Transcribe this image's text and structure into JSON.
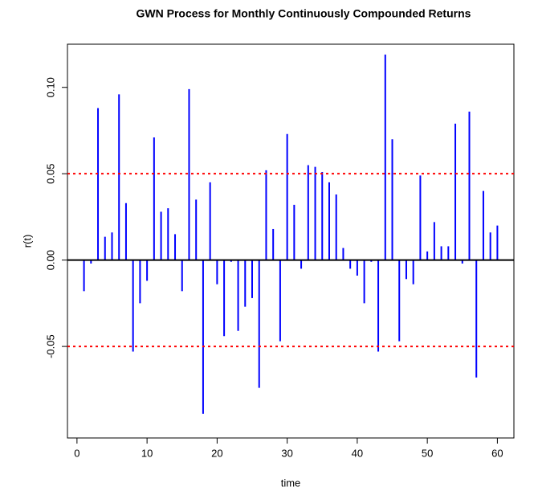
{
  "chart_data": {
    "type": "spike",
    "title": "GWN Process for Monthly Continuously Compounded Returns",
    "x_label": "time",
    "y_label": "r(t)",
    "x": [
      1,
      2,
      3,
      4,
      5,
      6,
      7,
      8,
      9,
      10,
      11,
      12,
      13,
      14,
      15,
      16,
      17,
      18,
      19,
      20,
      21,
      22,
      23,
      24,
      25,
      26,
      27,
      28,
      29,
      30,
      31,
      32,
      33,
      34,
      35,
      36,
      37,
      38,
      39,
      40,
      41,
      42,
      43,
      44,
      45,
      46,
      47,
      48,
      49,
      50,
      51,
      52,
      53,
      54,
      55,
      56,
      57,
      58,
      59,
      60
    ],
    "values": [
      -0.018,
      -0.002,
      0.088,
      0.0135,
      0.016,
      0.096,
      0.033,
      -0.053,
      -0.025,
      -0.012,
      0.071,
      0.028,
      0.03,
      0.015,
      -0.018,
      0.099,
      0.035,
      -0.089,
      0.045,
      -0.014,
      -0.044,
      -0.001,
      -0.041,
      -0.027,
      -0.022,
      -0.074,
      0.052,
      0.018,
      -0.047,
      0.073,
      0.032,
      -0.005,
      0.055,
      0.054,
      0.051,
      0.045,
      0.038,
      0.007,
      -0.005,
      -0.009,
      -0.025,
      -0.001,
      -0.053,
      0.119,
      0.07,
      -0.047,
      -0.011,
      -0.014,
      0.049,
      0.005,
      0.022,
      0.008,
      0.008,
      0.079,
      -0.002,
      0.086,
      -0.068,
      0.04,
      0.016,
      0.02
    ],
    "color": "#0000ff",
    "hlines": [
      {
        "value": 0,
        "color": "#000000",
        "dash": "none"
      },
      {
        "value": 0.05,
        "color": "#ff0000",
        "dash": "3 4"
      },
      {
        "value": -0.05,
        "color": "#ff0000",
        "dash": "3 4"
      }
    ],
    "xlim": [
      -1.36,
      62.36
    ],
    "ylim": [
      -0.103,
      0.125
    ],
    "xticks": [
      0,
      10,
      20,
      30,
      40,
      50,
      60
    ],
    "yticks": [
      {
        "value": -0.05,
        "label": "-0.05"
      },
      {
        "value": 0,
        "label": "0.00"
      },
      {
        "value": 0.05,
        "label": "0.05"
      },
      {
        "value": 0.1,
        "label": "0.10"
      }
    ]
  }
}
